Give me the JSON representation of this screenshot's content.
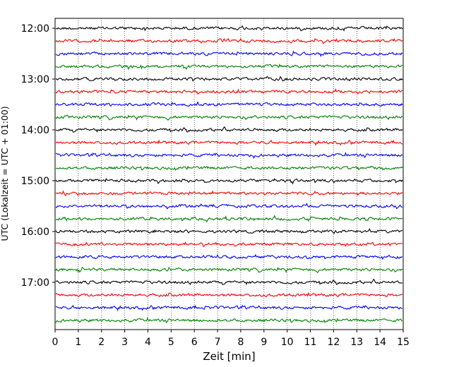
{
  "chart_data": {
    "type": "line",
    "title": "",
    "xlabel": "Zeit  [min]",
    "ylabel": "UTC (Lokalzeit = UTC + 01:00)",
    "xlim": [
      0,
      15
    ],
    "x_ticks": [
      "0",
      "1",
      "2",
      "3",
      "4",
      "5",
      "6",
      "7",
      "8",
      "9",
      "10",
      "11",
      "12",
      "13",
      "14",
      "15"
    ],
    "y_ticks": [
      "12:00",
      "13:00",
      "14:00",
      "15:00",
      "16:00",
      "17:00"
    ],
    "vertical_grid": true,
    "grid_style": "dotted",
    "trace_interval_minutes": 15,
    "trace_start": "12:00",
    "trace_count": 24,
    "trace_colors": [
      "#000000",
      "#ff0000",
      "#0000ff",
      "#008000"
    ]
  }
}
